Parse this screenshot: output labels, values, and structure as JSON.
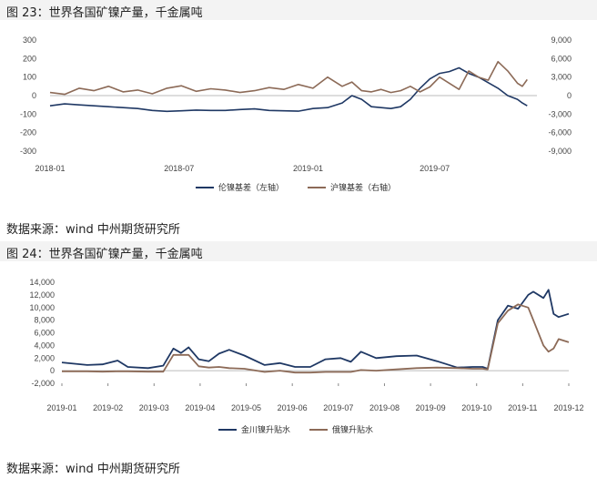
{
  "fig23": {
    "title": "图 23：世界各国矿镍产量，千金属吨",
    "source": "数据来源：wind  中州期货研究所",
    "chart": {
      "type": "line",
      "ylim_left": [
        -300,
        300
      ],
      "yticks_left": [
        "300",
        "200",
        "100",
        "0",
        "-100",
        "-200",
        "-300"
      ],
      "ylim_right": [
        -9000,
        9000
      ],
      "yticks_right": [
        "9,000",
        "6,000",
        "3,000",
        "0",
        "-3,000",
        "-6,000",
        "-9,000"
      ],
      "xticks": [
        "2018-01",
        "2018-07",
        "2019-01",
        "2019-07"
      ],
      "series": [
        {
          "name": "伦镍基差（左轴）",
          "color": "#1f3864",
          "axis": "left",
          "x": [
            0,
            0.03,
            0.06,
            0.09,
            0.12,
            0.15,
            0.18,
            0.21,
            0.24,
            0.27,
            0.3,
            0.33,
            0.36,
            0.39,
            0.42,
            0.45,
            0.48,
            0.51,
            0.54,
            0.57,
            0.6,
            0.62,
            0.64,
            0.66,
            0.68,
            0.7,
            0.72,
            0.74,
            0.76,
            0.78,
            0.8,
            0.82,
            0.84,
            0.86,
            0.88,
            0.9,
            0.92,
            0.94,
            0.96,
            0.97,
            0.98
          ],
          "y": [
            -55,
            -45,
            -50,
            -55,
            -60,
            -65,
            -70,
            -80,
            -85,
            -82,
            -78,
            -80,
            -80,
            -75,
            -72,
            -80,
            -82,
            -84,
            -70,
            -65,
            -40,
            0,
            -20,
            -60,
            -65,
            -70,
            -60,
            -20,
            40,
            90,
            120,
            130,
            150,
            120,
            100,
            70,
            40,
            0,
            -20,
            -40,
            -55
          ]
        },
        {
          "name": "沪镍基差（右轴）",
          "color": "#8c6a57",
          "axis": "right",
          "x": [
            0,
            0.03,
            0.06,
            0.09,
            0.12,
            0.15,
            0.18,
            0.21,
            0.24,
            0.27,
            0.3,
            0.33,
            0.36,
            0.39,
            0.42,
            0.45,
            0.48,
            0.51,
            0.54,
            0.57,
            0.6,
            0.62,
            0.64,
            0.66,
            0.68,
            0.7,
            0.72,
            0.74,
            0.76,
            0.78,
            0.8,
            0.82,
            0.84,
            0.86,
            0.88,
            0.9,
            0.92,
            0.94,
            0.96,
            0.97,
            0.98
          ],
          "y": [
            500,
            200,
            1200,
            800,
            1500,
            600,
            900,
            300,
            1200,
            1600,
            700,
            1100,
            900,
            500,
            800,
            1300,
            1000,
            1800,
            1200,
            3000,
            1500,
            2200,
            800,
            600,
            1000,
            500,
            800,
            1500,
            600,
            1400,
            3000,
            2000,
            1000,
            4000,
            3000,
            2500,
            5500,
            4000,
            2000,
            1500,
            2600
          ]
        }
      ]
    }
  },
  "fig24": {
    "title": "图 24：世界各国矿镍产量，千金属吨",
    "source": "数据来源：wind  中州期货研究所",
    "chart": {
      "type": "line",
      "ylim": [
        -2000,
        14000
      ],
      "yticks": [
        "14,000",
        "12,000",
        "10,000",
        "8,000",
        "6,000",
        "4,000",
        "2,000",
        "0",
        "-2,000"
      ],
      "xticks": [
        "2019-01",
        "2019-02",
        "2019-03",
        "2019-04",
        "2019-05",
        "2019-06",
        "2019-07",
        "2019-08",
        "2019-09",
        "2019-10",
        "2019-11",
        "2019-12"
      ],
      "series": [
        {
          "name": "金川镍升贴水",
          "color": "#1f3864",
          "x": [
            0,
            0.05,
            0.08,
            0.11,
            0.13,
            0.17,
            0.2,
            0.22,
            0.235,
            0.25,
            0.27,
            0.29,
            0.31,
            0.33,
            0.36,
            0.4,
            0.43,
            0.46,
            0.49,
            0.52,
            0.55,
            0.57,
            0.59,
            0.62,
            0.66,
            0.7,
            0.74,
            0.78,
            0.81,
            0.83,
            0.84,
            0.86,
            0.88,
            0.9,
            0.92,
            0.93,
            0.95,
            0.96,
            0.97,
            0.98,
            1.0
          ],
          "y": [
            1300,
            900,
            1000,
            1600,
            600,
            400,
            800,
            3500,
            2800,
            3700,
            1800,
            1500,
            2700,
            3300,
            2400,
            900,
            1200,
            600,
            600,
            1800,
            2000,
            1400,
            3000,
            2000,
            2300,
            2400,
            1500,
            500,
            600,
            600,
            300,
            8000,
            10300,
            9800,
            12000,
            12500,
            11500,
            12800,
            9000,
            8500,
            9000
          ]
        },
        {
          "name": "俄镍升贴水",
          "color": "#8c6a57",
          "x": [
            0,
            0.05,
            0.08,
            0.11,
            0.13,
            0.17,
            0.2,
            0.22,
            0.235,
            0.25,
            0.27,
            0.29,
            0.31,
            0.33,
            0.36,
            0.4,
            0.43,
            0.46,
            0.49,
            0.52,
            0.55,
            0.57,
            0.59,
            0.62,
            0.66,
            0.7,
            0.74,
            0.78,
            0.81,
            0.83,
            0.84,
            0.86,
            0.88,
            0.9,
            0.92,
            0.93,
            0.95,
            0.96,
            0.97,
            0.98,
            1.0
          ],
          "y": [
            -100,
            -100,
            -150,
            -100,
            -100,
            -150,
            -150,
            2500,
            2500,
            2500,
            700,
            500,
            600,
            400,
            300,
            -200,
            0,
            -300,
            -300,
            -200,
            -200,
            -200,
            100,
            0,
            200,
            400,
            500,
            400,
            300,
            300,
            200,
            7500,
            9500,
            10500,
            10000,
            8000,
            4000,
            3000,
            3500,
            5000,
            4500
          ]
        }
      ]
    }
  }
}
